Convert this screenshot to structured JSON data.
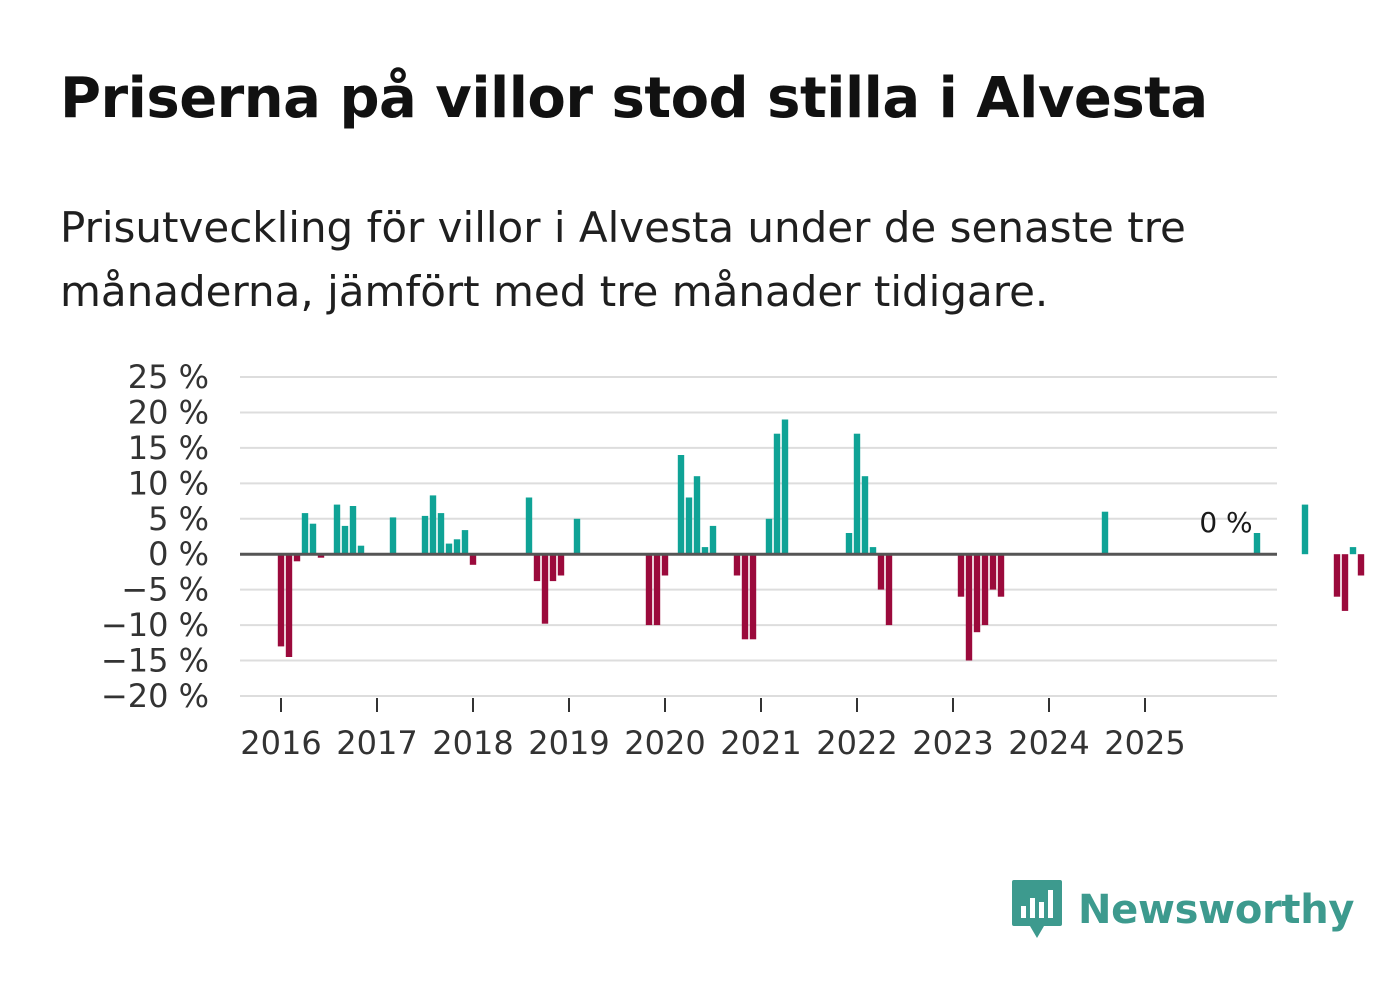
{
  "title": "Priserna på villor stod stilla i Alvesta",
  "subtitle": "Prisutveckling för villor i Alvesta under de senaste tre månaderna, jämfört med tre månader tidigare.",
  "brand": {
    "name": "Newsworthy",
    "color": "#3d9a8e"
  },
  "colors": {
    "positive": "#0fa396",
    "negative": "#9b0a3c",
    "zero_line": "#555555",
    "grid": "#dddddd"
  },
  "chart_data": {
    "type": "bar",
    "title": "Priserna på villor stod stilla i Alvesta",
    "ylabel": "",
    "xlabel": "",
    "ylim": [
      -20,
      25
    ],
    "y_ticks": [
      {
        "value": 25,
        "label": "25 %"
      },
      {
        "value": 20,
        "label": "20 %"
      },
      {
        "value": 15,
        "label": "15 %"
      },
      {
        "value": 10,
        "label": "10 %"
      },
      {
        "value": 5,
        "label": "5 %"
      },
      {
        "value": 0,
        "label": "0 %"
      },
      {
        "value": -5,
        "label": "−5 %"
      },
      {
        "value": -10,
        "label": "−10 %"
      },
      {
        "value": -15,
        "label": "−15 %"
      },
      {
        "value": -20,
        "label": "−20 %"
      }
    ],
    "x_ticks": [
      "2016",
      "2017",
      "2018",
      "2019",
      "2020",
      "2021",
      "2022",
      "2023",
      "2024",
      "2025"
    ],
    "series": [
      {
        "name": "Prisutveckling",
        "values": [
          -13,
          -14.5,
          -1,
          5.8,
          4.3,
          -0.5,
          0,
          7,
          4,
          6.8,
          1.2,
          0,
          0,
          0,
          5.2,
          0,
          0,
          0,
          5.4,
          8.3,
          5.8,
          1.5,
          2.1,
          3.4,
          -1.5,
          0,
          0,
          0,
          0,
          0,
          0,
          8,
          -3.8,
          -9.8,
          -3.8,
          -3,
          0,
          5,
          0,
          0,
          0,
          0,
          0,
          0,
          0,
          0,
          -10,
          -10,
          -3,
          0,
          14,
          8,
          11,
          1,
          4,
          0,
          0,
          -3,
          -12,
          -12,
          0,
          5,
          17,
          19,
          0,
          0,
          0,
          0,
          0,
          0,
          0,
          3,
          17,
          11,
          1,
          -5,
          -10,
          0,
          0,
          0,
          0,
          0,
          0,
          0,
          0,
          -6,
          -15,
          -11,
          -10,
          -5,
          -6,
          0,
          0,
          0,
          0,
          0,
          0,
          0,
          0,
          0,
          0,
          0,
          0,
          6,
          0,
          0,
          0,
          0,
          0,
          0,
          0,
          0,
          0,
          0,
          0,
          0,
          0,
          0,
          0,
          0,
          0,
          0,
          3,
          0,
          0,
          0,
          0,
          0,
          7,
          0,
          0,
          0,
          -6,
          -8,
          1,
          -3
        ]
      }
    ],
    "start_year": 2016,
    "annotation": {
      "label": "0 %",
      "value": 0
    }
  }
}
